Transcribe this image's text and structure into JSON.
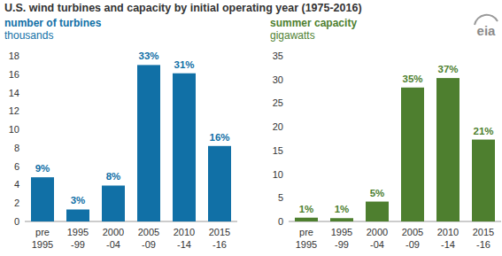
{
  "logo": "eia",
  "chart_data": [
    {
      "type": "bar",
      "title": "U.S. wind turbines and capacity by initial operating year (1975-2016)",
      "subtitle": "number of turbines",
      "y_label": "thousands",
      "categories": [
        "pre\n1995",
        "1995\n-99",
        "2000\n-04",
        "2005\n-09",
        "2010\n-14",
        "2015\n-16"
      ],
      "values": [
        4.8,
        1.3,
        3.9,
        17.0,
        16.1,
        8.2
      ],
      "share_labels": [
        "9%",
        "3%",
        "8%",
        "33%",
        "31%",
        "16%"
      ],
      "color": "#1170a6",
      "ylim": [
        0,
        18
      ],
      "yticks": [
        0,
        2,
        4,
        6,
        8,
        10,
        12,
        14,
        16,
        18
      ],
      "grid": false
    },
    {
      "type": "bar",
      "subtitle": "summer capacity",
      "y_label": "gigawatts",
      "categories": [
        "pre\n1995",
        "1995\n-99",
        "2000\n-04",
        "2005\n-09",
        "2010\n-14",
        "2015\n-16"
      ],
      "values": [
        0.8,
        0.7,
        4.2,
        28.3,
        30.3,
        17.3
      ],
      "share_labels": [
        "1%",
        "1%",
        "5%",
        "35%",
        "37%",
        "21%"
      ],
      "color": "#4e7f2f",
      "ylim": [
        0,
        35
      ],
      "yticks": [
        0,
        5,
        10,
        15,
        20,
        25,
        30,
        35
      ],
      "grid": false
    }
  ]
}
